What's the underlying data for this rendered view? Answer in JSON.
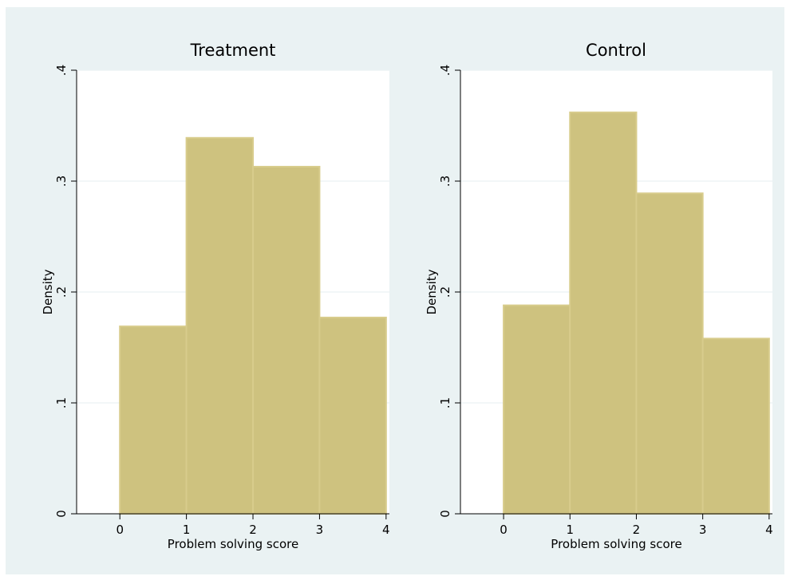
{
  "colors": {
    "outer_background": "#eaf2f3",
    "plot_background": "#ffffff",
    "bar_fill": "#cec27f",
    "bar_edge": "#d8cc8c",
    "gridline": "#eaf2f3",
    "axis": "#000000"
  },
  "chart_data": [
    {
      "type": "bar",
      "title": "Treatment",
      "xlabel": "Problem solving score",
      "ylabel": "Density",
      "bin_edges": [
        0,
        1,
        2,
        3,
        4
      ],
      "values": [
        0.169,
        0.339,
        0.313,
        0.177
      ],
      "xlim": [
        -0.65,
        4.05
      ],
      "ylim": [
        0,
        0.4
      ],
      "xticks": [
        0,
        1,
        2,
        3,
        4
      ],
      "xtick_labels": [
        "0",
        "1",
        "2",
        "3",
        "4"
      ],
      "yticks": [
        0,
        0.1,
        0.2,
        0.3,
        0.4
      ],
      "ytick_labels": [
        "0",
        ".1",
        ".2",
        ".3",
        ".4"
      ],
      "grid": true
    },
    {
      "type": "bar",
      "title": "Control",
      "xlabel": "Problem solving score",
      "ylabel": "Density",
      "bin_edges": [
        0,
        1,
        2,
        3,
        4
      ],
      "values": [
        0.188,
        0.362,
        0.289,
        0.158
      ],
      "xlim": [
        -0.65,
        4.05
      ],
      "ylim": [
        0,
        0.4
      ],
      "xticks": [
        0,
        1,
        2,
        3,
        4
      ],
      "xtick_labels": [
        "0",
        "1",
        "2",
        "3",
        "4"
      ],
      "yticks": [
        0,
        0.1,
        0.2,
        0.3,
        0.4
      ],
      "ytick_labels": [
        "0",
        ".1",
        ".2",
        ".3",
        ".4"
      ],
      "grid": true
    }
  ]
}
